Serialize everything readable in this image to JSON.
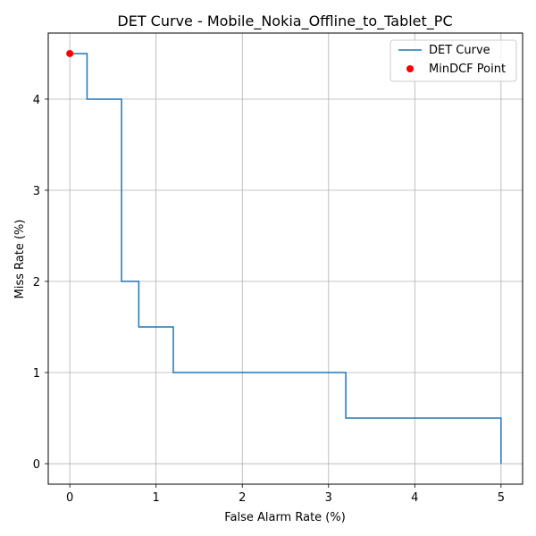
{
  "chart_data": {
    "type": "line",
    "title": "DET Curve - Mobile_Nokia_Offline_to_Tablet_PC",
    "xlabel": "False Alarm Rate (%)",
    "ylabel": "Miss Rate (%)",
    "xlim": [
      -0.25,
      5.25
    ],
    "ylim": [
      -0.225,
      4.725
    ],
    "xticks": [
      0,
      1,
      2,
      3,
      4,
      5
    ],
    "yticks": [
      0,
      1,
      2,
      3,
      4
    ],
    "grid": true,
    "legend_position": "top-right",
    "series": [
      {
        "name": "DET Curve",
        "color": "#1f77b4",
        "points": [
          [
            0.0,
            4.5
          ],
          [
            0.2,
            4.5
          ],
          [
            0.2,
            4.0
          ],
          [
            0.6,
            4.0
          ],
          [
            0.6,
            2.0
          ],
          [
            0.8,
            2.0
          ],
          [
            0.8,
            1.5
          ],
          [
            1.2,
            1.5
          ],
          [
            1.2,
            1.0
          ],
          [
            3.2,
            1.0
          ],
          [
            3.2,
            0.5
          ],
          [
            5.0,
            0.5
          ],
          [
            5.0,
            0.0
          ]
        ]
      }
    ],
    "markers": [
      {
        "name": "MinDCF Point",
        "color": "#ff0000",
        "x": 0.0,
        "y": 4.5
      }
    ]
  }
}
